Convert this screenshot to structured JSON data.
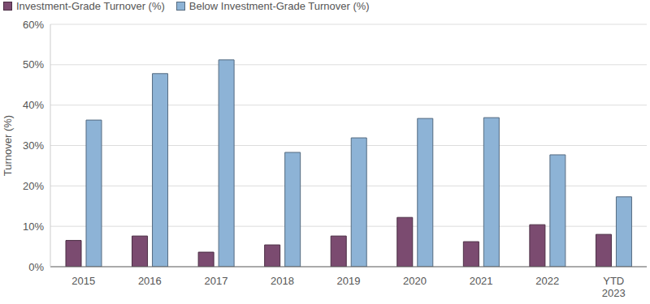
{
  "chart_data": {
    "type": "bar",
    "y_label": "Turnover (%)",
    "categories": [
      "2015",
      "2016",
      "2017",
      "2018",
      "2019",
      "2020",
      "2021",
      "2022",
      "YTD 2023"
    ],
    "series": [
      {
        "name": "Investment-Grade Turnover (%)",
        "color": "#7b4b70",
        "values": [
          6.5,
          7.6,
          3.6,
          5.4,
          7.6,
          12.2,
          6.2,
          10.4,
          8.0
        ]
      },
      {
        "name": "Below Investment-Grade Turnover (%)",
        "color": "#8db3d6",
        "values": [
          36.3,
          47.8,
          51.2,
          28.3,
          31.9,
          36.7,
          36.9,
          27.7,
          17.3
        ]
      }
    ],
    "ylim": [
      0,
      60
    ],
    "yticks": [
      {
        "value": 0,
        "label": "0%"
      },
      {
        "value": 10,
        "label": "10%"
      },
      {
        "value": 20,
        "label": "20%"
      },
      {
        "value": 30,
        "label": "30%"
      },
      {
        "value": 40,
        "label": "40%"
      },
      {
        "value": 50,
        "label": "50%"
      },
      {
        "value": 60,
        "label": "60%"
      }
    ],
    "grid": true,
    "legend": "top-left"
  }
}
